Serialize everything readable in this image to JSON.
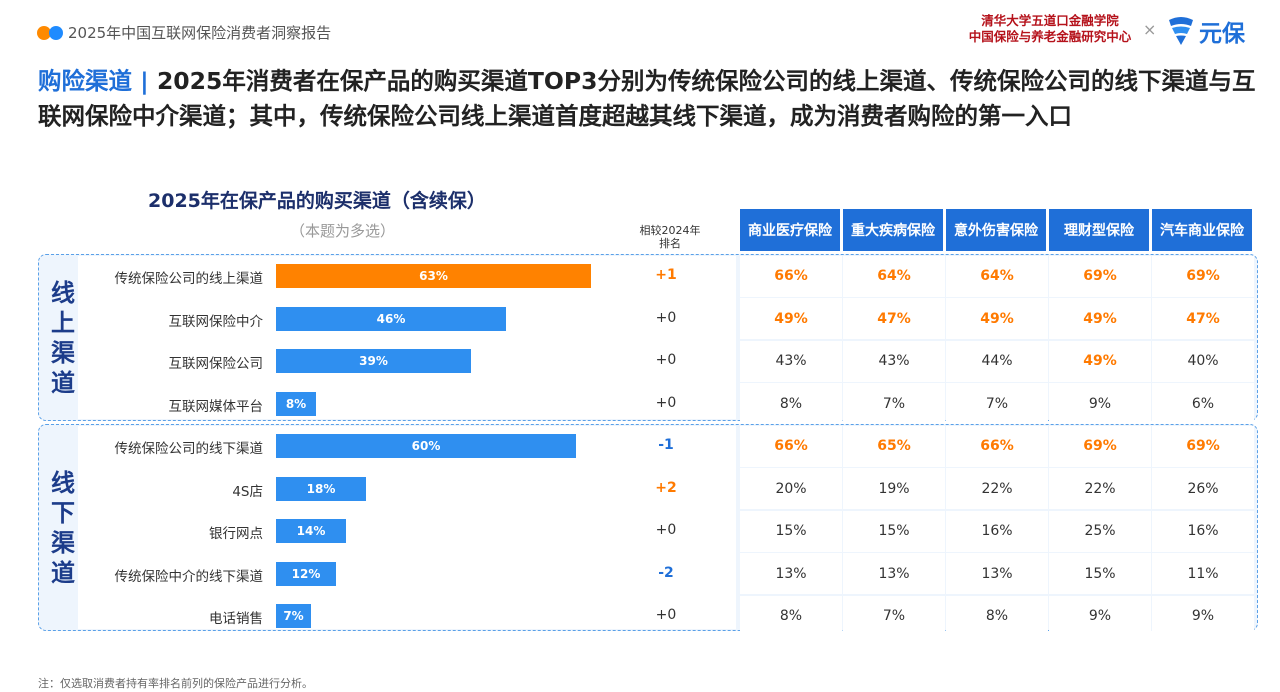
{
  "header": {
    "report_title": "2025年中国互联网保险消费者洞察报告",
    "institution_line1": "清华大学五道口金融学院",
    "institution_line2": "中国保险与养老金融研究中心",
    "times": "×",
    "logo_text": "元保"
  },
  "headline": {
    "keyword": "购险渠道",
    "separator": " | ",
    "text": "2025年消费者在保产品的购买渠道TOP3分别为传统保险公司的线上渠道、传统保险公司的线下渠道与互联网保险中介渠道；其中，传统保险公司线上渠道首度超越其线下渠道，成为消费者购险的第一入口"
  },
  "chart_data": {
    "type": "bar",
    "title": "2025年在保产品的购买渠道（含续保）",
    "subtitle": "（本题为多选）",
    "rank_header_line1": "相较2024年",
    "rank_header_line2": "排名",
    "products": [
      "商业医疗保险",
      "重大疾病保险",
      "意外伤害保险",
      "理财型保险",
      "汽车商业保险"
    ],
    "xlim": [
      0,
      100
    ],
    "groups": [
      {
        "label": "线上渠道",
        "rows": [
          {
            "category": "传统保险公司的线上渠道",
            "value": 63,
            "label": "63%",
            "rank_change": "+1",
            "rank_color": "#ff7a00",
            "bar_color": "#ff8200",
            "cells": [
              {
                "text": "66%",
                "hi": true
              },
              {
                "text": "64%",
                "hi": true
              },
              {
                "text": "64%",
                "hi": true
              },
              {
                "text": "69%",
                "hi": true
              },
              {
                "text": "69%",
                "hi": true
              }
            ]
          },
          {
            "category": "互联网保险中介",
            "value": 46,
            "label": "46%",
            "rank_change": "+0",
            "rank_color": "#333333",
            "bar_color": "#2f8ff0",
            "cells": [
              {
                "text": "49%",
                "hi": true
              },
              {
                "text": "47%",
                "hi": true
              },
              {
                "text": "49%",
                "hi": true
              },
              {
                "text": "49%",
                "hi": true
              },
              {
                "text": "47%",
                "hi": true
              }
            ]
          },
          {
            "category": "互联网保险公司",
            "value": 39,
            "label": "39%",
            "rank_change": "+0",
            "rank_color": "#333333",
            "bar_color": "#2f8ff0",
            "cells": [
              {
                "text": "43%",
                "hi": false
              },
              {
                "text": "43%",
                "hi": false
              },
              {
                "text": "44%",
                "hi": false
              },
              {
                "text": "49%",
                "hi": true
              },
              {
                "text": "40%",
                "hi": false
              }
            ]
          },
          {
            "category": "互联网媒体平台",
            "value": 8,
            "label": "8%",
            "rank_change": "+0",
            "rank_color": "#333333",
            "bar_color": "#2f8ff0",
            "cells": [
              {
                "text": "8%",
                "hi": false
              },
              {
                "text": "7%",
                "hi": false
              },
              {
                "text": "7%",
                "hi": false
              },
              {
                "text": "9%",
                "hi": false
              },
              {
                "text": "6%",
                "hi": false
              }
            ]
          }
        ]
      },
      {
        "label": "线下渠道",
        "rows": [
          {
            "category": "传统保险公司的线下渠道",
            "value": 60,
            "label": "60%",
            "rank_change": "-1",
            "rank_color": "#1f6fd8",
            "bar_color": "#2f8ff0",
            "cells": [
              {
                "text": "66%",
                "hi": true
              },
              {
                "text": "65%",
                "hi": true
              },
              {
                "text": "66%",
                "hi": true
              },
              {
                "text": "69%",
                "hi": true
              },
              {
                "text": "69%",
                "hi": true
              }
            ]
          },
          {
            "category": "4S店",
            "value": 18,
            "label": "18%",
            "rank_change": "+2",
            "rank_color": "#ff7a00",
            "bar_color": "#2f8ff0",
            "cells": [
              {
                "text": "20%",
                "hi": false
              },
              {
                "text": "19%",
                "hi": false
              },
              {
                "text": "22%",
                "hi": false
              },
              {
                "text": "22%",
                "hi": false
              },
              {
                "text": "26%",
                "hi": false
              }
            ]
          },
          {
            "category": "银行网点",
            "value": 14,
            "label": "14%",
            "rank_change": "+0",
            "rank_color": "#333333",
            "bar_color": "#2f8ff0",
            "cells": [
              {
                "text": "15%",
                "hi": false
              },
              {
                "text": "15%",
                "hi": false
              },
              {
                "text": "16%",
                "hi": false
              },
              {
                "text": "25%",
                "hi": false
              },
              {
                "text": "16%",
                "hi": false
              }
            ]
          },
          {
            "category": "传统保险中介的线下渠道",
            "value": 12,
            "label": "12%",
            "rank_change": "-2",
            "rank_color": "#1f6fd8",
            "bar_color": "#2f8ff0",
            "cells": [
              {
                "text": "13%",
                "hi": false
              },
              {
                "text": "13%",
                "hi": false
              },
              {
                "text": "13%",
                "hi": false
              },
              {
                "text": "15%",
                "hi": false
              },
              {
                "text": "11%",
                "hi": false
              }
            ]
          },
          {
            "category": "电话销售",
            "value": 7,
            "label": "7%",
            "rank_change": "+0",
            "rank_color": "#333333",
            "bar_color": "#2f8ff0",
            "cells": [
              {
                "text": "8%",
                "hi": false
              },
              {
                "text": "7%",
                "hi": false
              },
              {
                "text": "8%",
                "hi": false
              },
              {
                "text": "9%",
                "hi": false
              },
              {
                "text": "9%",
                "hi": false
              }
            ]
          }
        ]
      }
    ]
  },
  "footnote": "注：仅选取消费者持有率排名前列的保险产品进行分析。"
}
